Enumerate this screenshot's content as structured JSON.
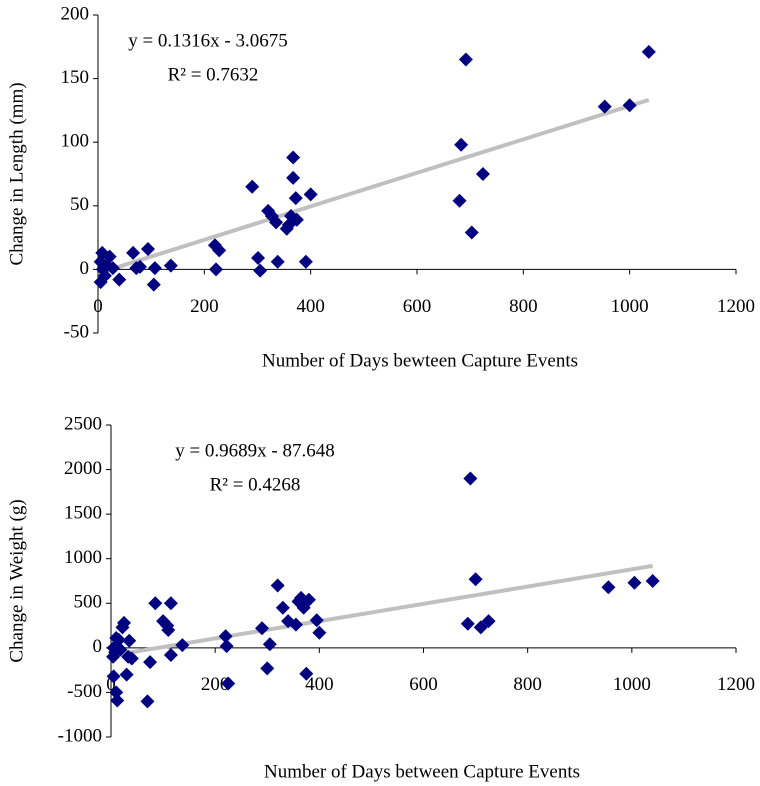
{
  "chart_data": [
    {
      "type": "scatter",
      "x_label": "Number of Days bewteen Capture Events",
      "y_label": "Change in Length (mm)",
      "equation": "y = 0.1316x - 3.0675",
      "r_squared": "R² = 0.7632",
      "color": "#000080",
      "trendline": {
        "slope": 0.1316,
        "intercept": -3.0675,
        "color": "#c0c0c0"
      },
      "xlim": [
        0,
        1200
      ],
      "xticks": [
        0,
        200,
        400,
        600,
        800,
        1000,
        1200
      ],
      "ylim": [
        -50,
        200
      ],
      "yticks": [
        -50,
        0,
        50,
        100,
        150,
        200
      ],
      "x": [
        8,
        5,
        9,
        5,
        17,
        22,
        28,
        40,
        13,
        66,
        72,
        79,
        94,
        107,
        105,
        137,
        220,
        228,
        222,
        290,
        301,
        305,
        320,
        327,
        335,
        338,
        355,
        359,
        363,
        367,
        367,
        372,
        374,
        391,
        400,
        680,
        683,
        692,
        703,
        724,
        953,
        1000,
        1036
      ],
      "values": [
        13,
        6,
        0,
        -10,
        3,
        10,
        1,
        -8,
        -5,
        13,
        1,
        2,
        16,
        1,
        -12,
        3,
        19,
        15,
        0,
        65,
        9,
        -1,
        46,
        42,
        37,
        6,
        32,
        35,
        42,
        72,
        88,
        56,
        39,
        6,
        59,
        54,
        98,
        165,
        29,
        75,
        128,
        129,
        171
      ]
    },
    {
      "type": "scatter",
      "x_label": "Number of Days between Capture Events",
      "y_label": "Change in Weight (g)",
      "equation": "y = 0.9689x - 87.648",
      "r_squared": "R² = 0.4268",
      "color": "#000080",
      "trendline": {
        "slope": 0.9689,
        "intercept": -87.648,
        "color": "#c0c0c0"
      },
      "xlim": [
        0,
        1200
      ],
      "xticks": [
        0,
        200,
        400,
        600,
        800,
        1000,
        1200
      ],
      "ylim": [
        -1000,
        2500
      ],
      "yticks": [
        -1000,
        -500,
        0,
        500,
        1000,
        1500,
        2000,
        2500
      ],
      "x": [
        5,
        4,
        5,
        10,
        12,
        10,
        15,
        18,
        22,
        25,
        8,
        30,
        33,
        35,
        40,
        70,
        75,
        85,
        100,
        108,
        115,
        110,
        115,
        137,
        220,
        222,
        225,
        290,
        300,
        305,
        320,
        330,
        340,
        355,
        360,
        365,
        370,
        375,
        380,
        400,
        395,
        685,
        690,
        700,
        710,
        725,
        955,
        1005,
        1040
      ],
      "values": [
        0,
        -100,
        -320,
        -500,
        -590,
        110,
        90,
        -20,
        230,
        280,
        -50,
        -300,
        -100,
        80,
        -120,
        -600,
        -160,
        500,
        300,
        250,
        500,
        200,
        -80,
        30,
        130,
        20,
        -400,
        220,
        -230,
        40,
        700,
        450,
        300,
        260,
        520,
        560,
        450,
        -290,
        540,
        170,
        310,
        270,
        1900,
        770,
        230,
        300,
        680,
        730,
        750
      ]
    }
  ]
}
